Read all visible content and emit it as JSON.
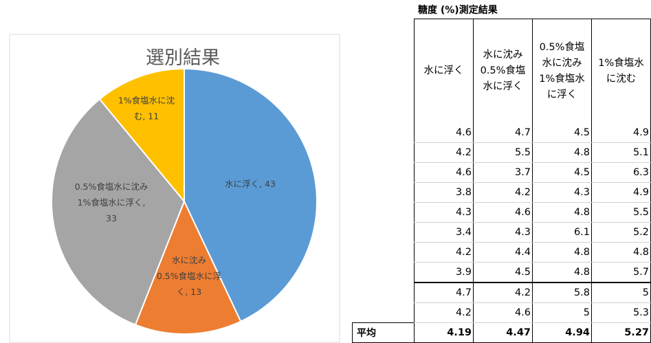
{
  "chart_data": {
    "type": "pie",
    "title": "選別結果",
    "slices": [
      {
        "label": "水に浮く",
        "value": 43,
        "color": "#5b9bd5"
      },
      {
        "label": "水に沈み0.5%食塩水に浮く",
        "value": 13,
        "color": "#ed7d31"
      },
      {
        "label": "0.5%食塩水に沈み1%食塩水に浮く",
        "value": 33,
        "color": "#a5a5a5"
      },
      {
        "label": "1%食塩水に沈む",
        "value": 11,
        "color": "#ffc000"
      }
    ],
    "data_labels": [
      [
        "水に浮く, 43"
      ],
      [
        "水に沈み",
        "0.5%食塩水に浮",
        "く, 13"
      ],
      [
        "0.5%食塩水に沈み",
        "1%食塩水に浮く,",
        "33"
      ],
      [
        "1%食塩水に沈",
        "む, 11"
      ]
    ]
  },
  "table": {
    "title": "糖度 (%)測定結果",
    "headers": [
      "水に浮く",
      "水に沈み\n0.5%食塩\n水に浮く",
      "0.5%食塩\n水に沈み\n1%食塩水\nに浮く",
      "1%食塩水\nに沈む"
    ],
    "rows": [
      [
        "4.6",
        "4.7",
        "4.5",
        "4.9"
      ],
      [
        "4.2",
        "5.5",
        "4.8",
        "5.1"
      ],
      [
        "4.6",
        "3.7",
        "4.5",
        "6.3"
      ],
      [
        "3.8",
        "4.2",
        "4.3",
        "4.9"
      ],
      [
        "4.3",
        "4.6",
        "4.8",
        "5.5"
      ],
      [
        "3.4",
        "4.3",
        "6.1",
        "5.2"
      ],
      [
        "4.2",
        "4.4",
        "4.8",
        "4.8"
      ],
      [
        "3.9",
        "4.5",
        "4.8",
        "5.7"
      ],
      [
        "4.7",
        "4.2",
        "5.8",
        "5"
      ],
      [
        "4.2",
        "4.6",
        "5",
        "5.3"
      ]
    ],
    "average_label": "平均",
    "averages": [
      "4.19",
      "4.47",
      "4.94",
      "5.27"
    ]
  }
}
